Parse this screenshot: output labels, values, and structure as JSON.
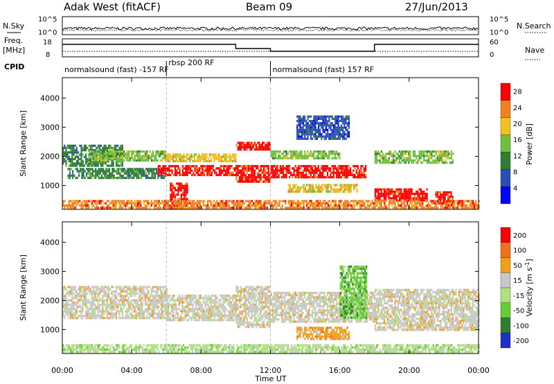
{
  "header": {
    "station": "Adak West (fitACF)",
    "beam": "Beam 09",
    "date": "27/Jun/2013"
  },
  "noise_panel": {
    "left_label": "N.Sky",
    "right_label": "N.Search",
    "left_ticks": [
      "10^5",
      "10^0"
    ],
    "right_ticks": [
      "10^5",
      "10^0"
    ]
  },
  "freq_panel": {
    "left_label": "Freq.",
    "left_unit": "[MHz]",
    "right_label": "Nave",
    "left_ticks": [
      "18",
      "8"
    ],
    "right_ticks": [
      "60",
      "0"
    ],
    "freq_levels": [
      {
        "from_h": 0,
        "to_h": 10,
        "level": "high"
      },
      {
        "from_h": 10,
        "to_h": 12,
        "level": "mid"
      },
      {
        "from_h": 12,
        "to_h": 18,
        "level": "low"
      },
      {
        "from_h": 18,
        "to_h": 24,
        "level": "high"
      }
    ]
  },
  "cpid": {
    "label": "CPID",
    "segments": [
      {
        "text": "normalsound (fast) -157 RF",
        "start_h": 0
      },
      {
        "text": "rbsp 200 RF",
        "start_h": 6
      },
      {
        "text": "normalsound (fast) 157 RF",
        "start_h": 12
      }
    ]
  },
  "chart_data": [
    {
      "type": "heatmap",
      "name": "Power",
      "ylabel": "Slant Range [km]",
      "ylim": [
        180,
        4700
      ],
      "yticks": [
        1000,
        2000,
        3000,
        4000
      ],
      "colorbar": {
        "label": "Power [dB]",
        "ticks": [
          "4",
          "8",
          "12",
          "16",
          "20",
          "24",
          "28"
        ],
        "range": [
          0,
          30
        ],
        "colors": [
          "#0000ff",
          "#2b4fb0",
          "#2e7d32",
          "#6fbf40",
          "#f0c020",
          "#f08020",
          "#ff0000"
        ]
      },
      "bands": [
        {
          "from_h": 0.0,
          "to_h": 3.5,
          "lo": 1700,
          "hi": 2400,
          "level": 2
        },
        {
          "from_h": 0.3,
          "to_h": 6.0,
          "lo": 1250,
          "hi": 1600,
          "level": 2
        },
        {
          "from_h": 1.5,
          "to_h": 6.0,
          "lo": 1850,
          "hi": 2200,
          "level": 3
        },
        {
          "from_h": 5.5,
          "to_h": 10.0,
          "lo": 1350,
          "hi": 1700,
          "level": 6
        },
        {
          "from_h": 6.0,
          "to_h": 10.0,
          "lo": 1800,
          "hi": 2100,
          "level": 4
        },
        {
          "from_h": 6.2,
          "to_h": 7.2,
          "lo": 250,
          "hi": 1100,
          "level": 6
        },
        {
          "from_h": 10.0,
          "to_h": 12.0,
          "lo": 1100,
          "hi": 1700,
          "level": 6
        },
        {
          "from_h": 10.0,
          "to_h": 12.0,
          "lo": 2200,
          "hi": 2500,
          "level": 6
        },
        {
          "from_h": 12.0,
          "to_h": 17.5,
          "lo": 1300,
          "hi": 1700,
          "level": 6
        },
        {
          "from_h": 12.0,
          "to_h": 16.0,
          "lo": 1900,
          "hi": 2200,
          "level": 3
        },
        {
          "from_h": 13.0,
          "to_h": 17.0,
          "lo": 750,
          "hi": 1050,
          "level": 4
        },
        {
          "from_h": 13.5,
          "to_h": 16.5,
          "lo": 2600,
          "hi": 3400,
          "level": 1
        },
        {
          "from_h": 18.0,
          "to_h": 22.5,
          "lo": 1800,
          "hi": 2200,
          "level": 3
        },
        {
          "from_h": 18.0,
          "to_h": 21.0,
          "lo": 500,
          "hi": 900,
          "level": 6
        },
        {
          "from_h": 21.5,
          "to_h": 22.5,
          "lo": 350,
          "hi": 800,
          "level": 6
        },
        {
          "from_h": 0.0,
          "to_h": 24.0,
          "lo": 200,
          "hi": 500,
          "level": 5
        }
      ]
    },
    {
      "type": "heatmap",
      "name": "Velocity",
      "ylabel": "Slant Range [km]",
      "ylim": [
        180,
        4700
      ],
      "yticks": [
        1000,
        2000,
        3000,
        4000
      ],
      "colorbar": {
        "label": "Velocity [m s^-1]",
        "ticks": [
          "200",
          "100",
          "50",
          "15",
          "-15",
          "-50",
          "-100",
          "-200"
        ],
        "colors": [
          "#2030c0",
          "#2e7d32",
          "#66cc33",
          "#b0e080",
          "#c8c8c8",
          "#f0a020",
          "#f07020",
          "#ff0000"
        ]
      },
      "bands": [
        {
          "from_h": 0.0,
          "to_h": 6.0,
          "lo": 1400,
          "hi": 2500,
          "level": 4
        },
        {
          "from_h": 6.0,
          "to_h": 10.0,
          "lo": 1300,
          "hi": 2200,
          "level": 4
        },
        {
          "from_h": 10.0,
          "to_h": 12.0,
          "lo": 1100,
          "hi": 2500,
          "level": 4
        },
        {
          "from_h": 12.0,
          "to_h": 18.0,
          "lo": 1300,
          "hi": 2300,
          "level": 4
        },
        {
          "from_h": 13.5,
          "to_h": 16.5,
          "lo": 700,
          "hi": 1100,
          "level": 5
        },
        {
          "from_h": 16.0,
          "to_h": 17.5,
          "lo": 1400,
          "hi": 3200,
          "level": 2
        },
        {
          "from_h": 18.0,
          "to_h": 24.0,
          "lo": 1000,
          "hi": 2400,
          "level": 4
        },
        {
          "from_h": 0.0,
          "to_h": 24.0,
          "lo": 200,
          "hi": 500,
          "level": 3
        }
      ]
    }
  ],
  "x_axis": {
    "label": "Time UT",
    "range_h": [
      0,
      24
    ],
    "ticks": [
      "00:00",
      "04:00",
      "08:00",
      "12:00",
      "16:00",
      "20:00",
      "00:00"
    ]
  }
}
